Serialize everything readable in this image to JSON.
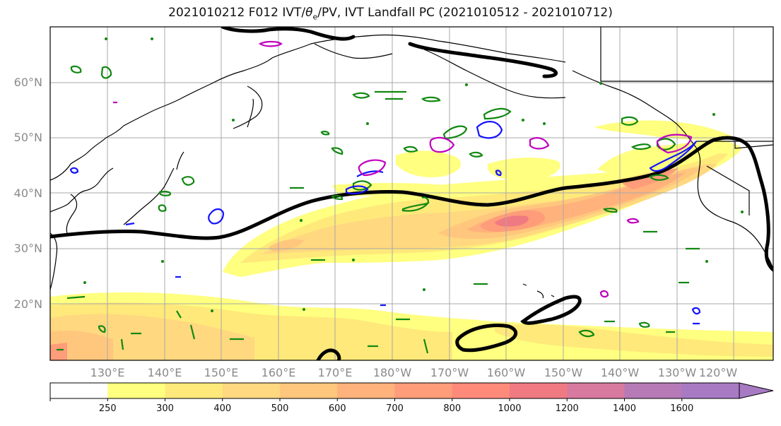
{
  "title": {
    "prefix": "2021010212 F012 IVT/",
    "theta": "θ",
    "theta_sub": "e",
    "suffix": "/PV, IVT Landfall PC (2021010512 - 2021010712)"
  },
  "lat_labels": [
    "60°N",
    "50°N",
    "40°N",
    "30°N",
    "20°N"
  ],
  "lon_labels": [
    "130°E",
    "140°E",
    "150°E",
    "160°E",
    "170°E",
    "180°W",
    "170°W",
    "160°W",
    "150°W",
    "140°W",
    "130°W",
    "120°W"
  ],
  "colorbar": {
    "ticks": [
      "250",
      "300",
      "400",
      "500",
      "600",
      "700",
      "800",
      "1000",
      "1200",
      "1400",
      "1600"
    ],
    "colors": [
      "#ffffff",
      "#ffff80",
      "#ffe97a",
      "#ffd880",
      "#ffc77d",
      "#ffb27c",
      "#ff9c7a",
      "#ff8a7a",
      "#f07a82",
      "#d87aa0",
      "#b67ab6",
      "#a87ac4"
    ]
  },
  "contour_colors": {
    "ivt_landfall_pc": "#000000",
    "theta_e": "#008000",
    "pv_blue": "#0000ff",
    "pv_magenta": "#c000c0"
  }
}
